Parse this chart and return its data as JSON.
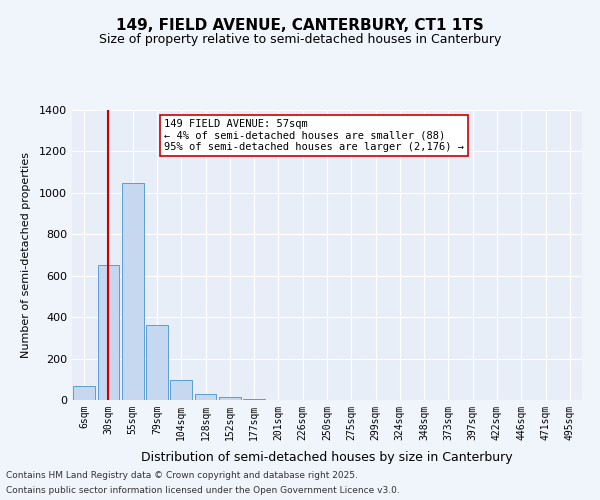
{
  "title1": "149, FIELD AVENUE, CANTERBURY, CT1 1TS",
  "title2": "Size of property relative to semi-detached houses in Canterbury",
  "xlabel": "Distribution of semi-detached houses by size in Canterbury",
  "ylabel": "Number of semi-detached properties",
  "categories": [
    "6sqm",
    "30sqm",
    "55sqm",
    "79sqm",
    "104sqm",
    "128sqm",
    "152sqm",
    "177sqm",
    "201sqm",
    "226sqm",
    "250sqm",
    "275sqm",
    "299sqm",
    "324sqm",
    "348sqm",
    "373sqm",
    "397sqm",
    "422sqm",
    "446sqm",
    "471sqm",
    "495sqm"
  ],
  "values": [
    70,
    650,
    1050,
    360,
    95,
    30,
    13,
    5,
    0,
    0,
    0,
    0,
    0,
    0,
    0,
    0,
    0,
    0,
    0,
    0,
    0
  ],
  "bar_color": "#c5d8f0",
  "bar_edge_color": "#5a9fd4",
  "vline_x": 1,
  "vline_color": "#cc0000",
  "annotation_title": "149 FIELD AVENUE: 57sqm",
  "annotation_line1": "← 4% of semi-detached houses are smaller (88)",
  "annotation_line2": "95% of semi-detached houses are larger (2,176) →",
  "ylim": [
    0,
    1400
  ],
  "yticks": [
    0,
    200,
    400,
    600,
    800,
    1000,
    1200,
    1400
  ],
  "footer1": "Contains HM Land Registry data © Crown copyright and database right 2025.",
  "footer2": "Contains public sector information licensed under the Open Government Licence v3.0.",
  "bg_color": "#f0f4fb",
  "plot_bg_color": "#e8eef8"
}
